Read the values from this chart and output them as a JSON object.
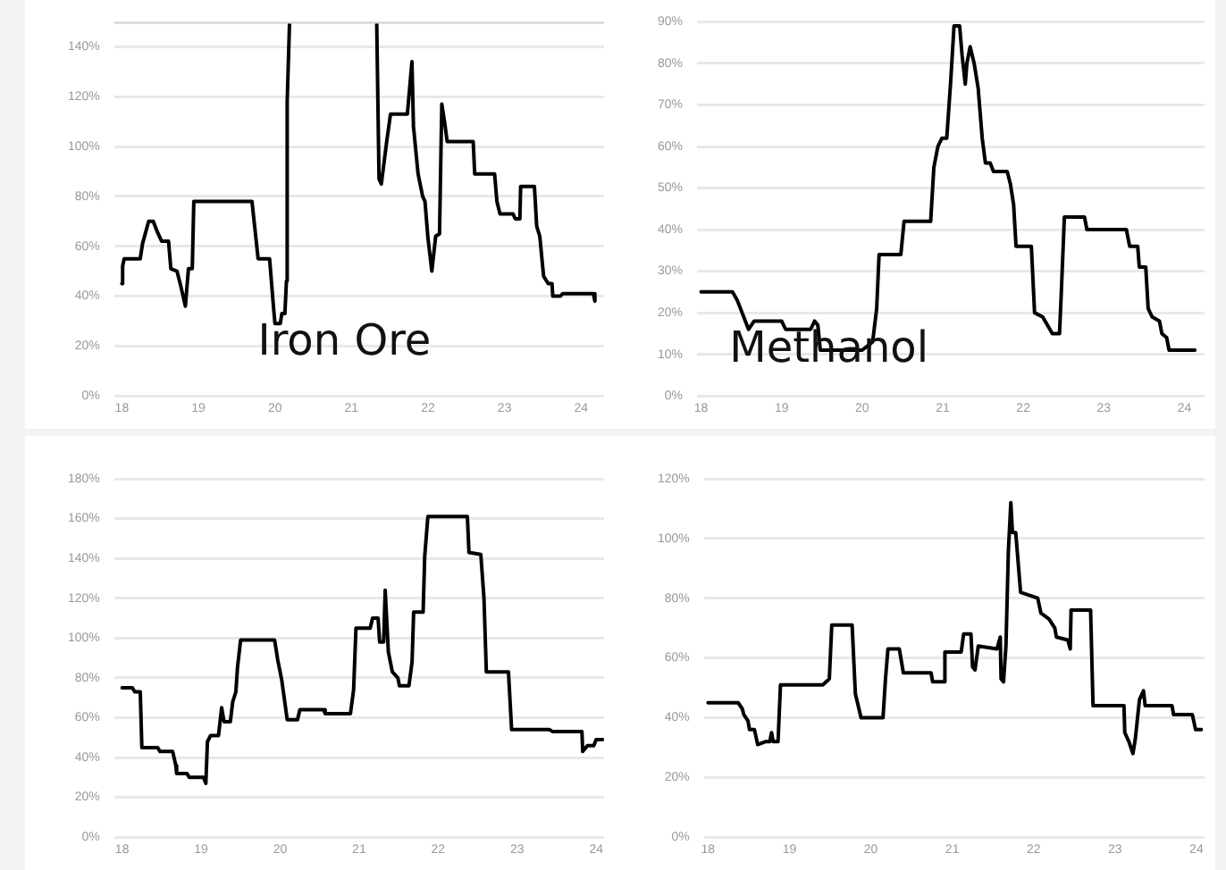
{
  "chart_data": [
    {
      "type": "line",
      "title": "Iron Ore",
      "color": "#000000",
      "grid": "y",
      "marker": "none",
      "legend": false,
      "xlim": [
        17.9,
        24.3
      ],
      "xticks": [
        18,
        19,
        20,
        21,
        22,
        23,
        24
      ],
      "ylim": [
        0,
        150
      ],
      "yticks": [
        {
          "value": 0,
          "label": "0%"
        },
        {
          "value": 20,
          "label": "20%"
        },
        {
          "value": 40,
          "label": "40%"
        },
        {
          "value": 60,
          "label": "60%"
        },
        {
          "value": 80,
          "label": "80%"
        },
        {
          "value": 100,
          "label": "100%"
        },
        {
          "value": 120,
          "label": "120%"
        },
        {
          "value": 140,
          "label": "140%"
        }
      ],
      "x": [
        18.0,
        18.01,
        18.03,
        18.24,
        18.27,
        18.35,
        18.41,
        18.46,
        18.52,
        18.61,
        18.64,
        18.72,
        18.77,
        18.83,
        18.87,
        18.92,
        18.94,
        19.7,
        19.78,
        19.93,
        19.98,
        20.0,
        20.07,
        20.09,
        20.13,
        20.15,
        20.16,
        20.19,
        20.8,
        21.33,
        21.36,
        21.39,
        21.46,
        21.51,
        21.73,
        21.79,
        21.81,
        21.87,
        21.93,
        21.96,
        22.0,
        22.05,
        22.1,
        22.15,
        22.18,
        22.22,
        22.25,
        22.59,
        22.61,
        22.87,
        22.9,
        22.94,
        23.11,
        23.14,
        23.2,
        23.21,
        23.39,
        23.42,
        23.46,
        23.51,
        23.57,
        23.62,
        23.63,
        23.73,
        23.76,
        24.16,
        24.18
      ],
      "values": [
        45,
        52,
        55,
        55,
        61,
        70,
        70,
        66,
        62,
        62,
        51,
        50,
        44,
        36,
        51,
        51,
        78,
        78,
        55,
        55,
        36,
        29,
        29,
        33,
        33,
        46,
        118,
        149,
        null,
        149,
        87,
        85,
        102,
        113,
        113,
        134,
        108,
        89,
        80,
        78,
        63,
        50,
        64,
        65,
        117,
        109,
        102,
        102,
        89,
        89,
        78,
        73,
        73,
        71,
        71,
        84,
        84,
        68,
        64,
        48,
        45,
        45,
        40,
        40,
        41,
        41,
        38
      ]
    },
    {
      "type": "line",
      "title": "Methanol",
      "color": "#000000",
      "grid": "y",
      "marker": "none",
      "legend": false,
      "xlim": [
        17.95,
        24.25
      ],
      "xticks": [
        18,
        19,
        20,
        21,
        22,
        23,
        24
      ],
      "ylim": [
        0,
        90
      ],
      "yticks": [
        {
          "value": 0,
          "label": "0%"
        },
        {
          "value": 10,
          "label": "10%"
        },
        {
          "value": 20,
          "label": "20%"
        },
        {
          "value": 30,
          "label": "30%"
        },
        {
          "value": 40,
          "label": "40%"
        },
        {
          "value": 50,
          "label": "50%"
        },
        {
          "value": 60,
          "label": "60%"
        },
        {
          "value": 70,
          "label": "70%"
        },
        {
          "value": 80,
          "label": "80%"
        },
        {
          "value": 90,
          "label": "90%"
        }
      ],
      "x": [
        18.0,
        18.39,
        18.45,
        18.51,
        18.55,
        18.59,
        18.66,
        19.0,
        19.05,
        19.36,
        19.41,
        19.45,
        19.48,
        20.0,
        20.13,
        20.18,
        20.21,
        20.48,
        20.52,
        20.85,
        20.89,
        20.94,
        20.99,
        21.05,
        21.1,
        21.14,
        21.21,
        21.24,
        21.28,
        21.3,
        21.34,
        21.39,
        21.44,
        21.49,
        21.53,
        21.59,
        21.63,
        21.8,
        21.84,
        21.88,
        21.91,
        22.1,
        22.14,
        22.24,
        22.3,
        22.36,
        22.45,
        22.47,
        22.51,
        22.76,
        22.79,
        23.28,
        23.32,
        23.42,
        23.44,
        23.52,
        23.55,
        23.6,
        23.69,
        23.72,
        23.78,
        23.81,
        24.13
      ],
      "values": [
        25,
        25,
        23,
        20,
        18,
        16,
        18,
        18,
        16,
        16,
        18,
        17,
        11,
        11,
        13,
        21,
        34,
        34,
        42,
        42,
        55,
        60,
        62,
        62,
        76,
        89,
        89,
        82,
        75,
        80,
        84,
        80,
        74,
        62,
        56,
        56,
        54,
        54,
        51,
        46,
        36,
        36,
        20,
        19,
        17,
        15,
        15,
        24,
        43,
        43,
        40,
        40,
        36,
        36,
        31,
        31,
        21,
        19,
        18,
        15,
        14,
        11,
        11
      ]
    },
    {
      "type": "line",
      "color": "#000000",
      "grid": "y",
      "marker": "none",
      "legend": false,
      "xlim": [
        17.9,
        24.1
      ],
      "xticks": [
        18,
        19,
        20,
        21,
        22,
        23,
        24
      ],
      "ylim": [
        0,
        180
      ],
      "yticks": [
        {
          "value": 0,
          "label": "0%"
        },
        {
          "value": 20,
          "label": "20%"
        },
        {
          "value": 40,
          "label": "40%"
        },
        {
          "value": 60,
          "label": "60%"
        },
        {
          "value": 80,
          "label": "80%"
        },
        {
          "value": 100,
          "label": "100%"
        },
        {
          "value": 120,
          "label": "120%"
        },
        {
          "value": 140,
          "label": "140%"
        },
        {
          "value": 160,
          "label": "160%"
        },
        {
          "value": 180,
          "label": "180%"
        }
      ],
      "x": [
        18.0,
        18.13,
        18.16,
        18.23,
        18.25,
        18.45,
        18.48,
        18.64,
        18.68,
        18.69,
        18.82,
        18.85,
        19.03,
        19.06,
        19.08,
        19.12,
        19.22,
        19.26,
        19.29,
        19.37,
        19.4,
        19.44,
        19.46,
        19.5,
        19.93,
        19.97,
        20.02,
        20.09,
        20.22,
        20.25,
        20.55,
        20.57,
        20.89,
        20.93,
        20.96,
        21.14,
        21.17,
        21.24,
        21.26,
        21.31,
        21.33,
        21.37,
        21.42,
        21.49,
        21.51,
        21.63,
        21.67,
        21.69,
        21.81,
        21.83,
        21.87,
        22.37,
        22.39,
        22.54,
        22.58,
        22.61,
        22.89,
        22.93,
        23.41,
        23.45,
        23.82,
        23.83,
        23.89,
        23.97,
        24.0,
        24.08
      ],
      "values": [
        75,
        75,
        73,
        73,
        45,
        45,
        43,
        43,
        36,
        32,
        32,
        30,
        30,
        27,
        48,
        51,
        51,
        65,
        58,
        58,
        68,
        73,
        85,
        99,
        99,
        89,
        79,
        59,
        59,
        64,
        64,
        62,
        62,
        74,
        105,
        105,
        110,
        110,
        98,
        98,
        124,
        93,
        83,
        80,
        76,
        76,
        88,
        113,
        113,
        141,
        161,
        161,
        143,
        142,
        120,
        83,
        83,
        54,
        54,
        53,
        53,
        43,
        46,
        46,
        49,
        49
      ]
    },
    {
      "type": "line",
      "color": "#000000",
      "grid": "y",
      "marker": "none",
      "legend": false,
      "xlim": [
        17.95,
        24.1
      ],
      "xticks": [
        18,
        19,
        20,
        21,
        22,
        23,
        24
      ],
      "ylim": [
        0,
        120
      ],
      "yticks": [
        {
          "value": 0,
          "label": "0%"
        },
        {
          "value": 20,
          "label": "20%"
        },
        {
          "value": 40,
          "label": "40%"
        },
        {
          "value": 60,
          "label": "60%"
        },
        {
          "value": 80,
          "label": "80%"
        },
        {
          "value": 100,
          "label": "100%"
        },
        {
          "value": 120,
          "label": "120%"
        }
      ],
      "x": [
        18.0,
        18.37,
        18.42,
        18.44,
        18.49,
        18.51,
        18.57,
        18.61,
        18.71,
        18.76,
        18.78,
        18.8,
        18.86,
        18.89,
        19.41,
        19.49,
        19.52,
        19.77,
        19.81,
        19.88,
        20.15,
        20.18,
        20.21,
        20.35,
        20.4,
        20.74,
        20.76,
        20.9,
        20.91,
        21.11,
        21.14,
        21.23,
        21.25,
        21.28,
        21.32,
        21.55,
        21.59,
        21.6,
        21.63,
        21.66,
        21.69,
        21.72,
        21.74,
        21.78,
        21.84,
        22.05,
        22.09,
        22.19,
        22.26,
        22.28,
        22.42,
        22.45,
        22.46,
        22.7,
        22.73,
        23.11,
        23.12,
        23.17,
        23.22,
        23.25,
        23.3,
        23.35,
        23.37,
        23.7,
        23.72,
        23.95,
        23.99,
        24.06
      ],
      "values": [
        45,
        45,
        43,
        41,
        39,
        36,
        36,
        31,
        32,
        32,
        35,
        32,
        32,
        51,
        51,
        53,
        71,
        71,
        48,
        40,
        40,
        53,
        63,
        63,
        55,
        55,
        52,
        52,
        62,
        62,
        68,
        68,
        57,
        56,
        64,
        63,
        67,
        53,
        52,
        64,
        96,
        112,
        102,
        102,
        82,
        80,
        75,
        73,
        70,
        67,
        66,
        63,
        76,
        76,
        44,
        44,
        35,
        32,
        28,
        33,
        46,
        49,
        44,
        44,
        41,
        41,
        36,
        36
      ]
    }
  ]
}
